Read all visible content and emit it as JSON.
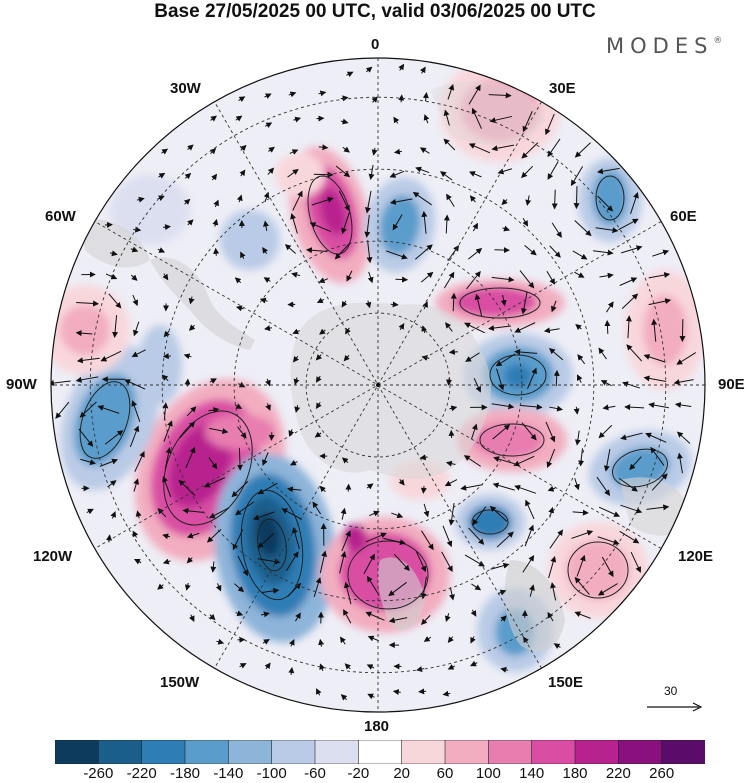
{
  "title": "Base 27/05/2025 00 UTC, valid 03/06/2025 00 UTC",
  "brand": "MODES",
  "brand_mark": "®",
  "longitudes": {
    "top": "0",
    "bottom": "180",
    "left": "90W",
    "right": "90E",
    "nnw": "30W",
    "nne": "30E",
    "wnw": "60W",
    "ene": "60E",
    "wsw": "120W",
    "ese": "120E",
    "ssw": "150W",
    "sse": "150E"
  },
  "vector_scale": {
    "label": "30"
  },
  "colorbar": {
    "ticks": [
      "-260",
      "-220",
      "-180",
      "-140",
      "-100",
      "-60",
      "-20",
      "20",
      "60",
      "100",
      "140",
      "180",
      "220",
      "260"
    ],
    "colors": [
      "#0d3b5e",
      "#1a5e8c",
      "#2f7db5",
      "#5a9ccb",
      "#8db4d9",
      "#b9cbe6",
      "#dcdff0",
      "#ffffff",
      "#f8d7db",
      "#f2adc0",
      "#e87db0",
      "#d94ea3",
      "#b8228f",
      "#8a107f",
      "#5a0c6b"
    ]
  },
  "colors": {
    "ocean_base": "#f3f3f8",
    "land": "#d7d7d7",
    "contour": "#222222"
  }
}
